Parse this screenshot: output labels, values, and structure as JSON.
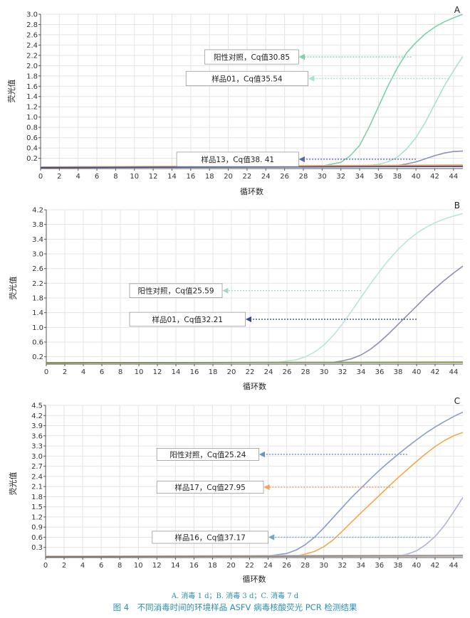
{
  "caption": {
    "subtitle": "A. 消毒 1 d；B. 消毒 3 d；C. 消毒 7 d",
    "title": "图 4　不同消毒时间的环境样品 ASFV 病毒核酸荧光 PCR 检测结果"
  },
  "chart_data": [
    {
      "panel": "A",
      "type": "line",
      "xlabel": "循环数",
      "ylabel": "荧光值",
      "xlim": [
        0,
        45
      ],
      "ylim": [
        0,
        3.0
      ],
      "xticks": [
        0,
        2,
        4,
        6,
        8,
        10,
        12,
        14,
        16,
        18,
        20,
        22,
        24,
        26,
        28,
        30,
        32,
        34,
        36,
        38,
        40,
        42,
        44
      ],
      "yticks": [
        0.2,
        0.4,
        0.6,
        0.8,
        1.0,
        1.2,
        1.4,
        1.6,
        1.8,
        2.0,
        2.2,
        2.4,
        2.6,
        2.8,
        3.0
      ],
      "ytick_labels": [
        "0.2",
        "0.4",
        "0.6",
        "0.8",
        "1.0",
        "1.2",
        "1.4",
        "1.6",
        "1.8",
        "2.0",
        "2.2",
        "2.4",
        "2.6",
        "2.8",
        "3.0"
      ],
      "grid": true,
      "series": [
        {
          "color": "#7ed1a8",
          "x": [
            0,
            30,
            32,
            33,
            34,
            35,
            36,
            37,
            38,
            39,
            40,
            41,
            42,
            43,
            44,
            45
          ],
          "y": [
            0.03,
            0.05,
            0.12,
            0.25,
            0.45,
            0.8,
            1.2,
            1.6,
            1.95,
            2.25,
            2.45,
            2.62,
            2.75,
            2.85,
            2.93,
            3.0
          ]
        },
        {
          "color": "#a8e3cc",
          "x": [
            0,
            34,
            36,
            37,
            38,
            39,
            40,
            41,
            42,
            43,
            44,
            45
          ],
          "y": [
            0.03,
            0.04,
            0.08,
            0.13,
            0.22,
            0.38,
            0.6,
            0.9,
            1.25,
            1.6,
            1.9,
            2.18
          ]
        },
        {
          "color": "#8a90c0",
          "x": [
            0,
            36,
            38,
            39,
            40,
            41,
            42,
            43,
            44,
            45
          ],
          "y": [
            0.03,
            0.04,
            0.06,
            0.09,
            0.13,
            0.19,
            0.25,
            0.3,
            0.33,
            0.34
          ]
        },
        {
          "color": "#d9534f",
          "x": [
            0,
            45
          ],
          "y": [
            0.02,
            0.05
          ]
        },
        {
          "color": "#f0a868",
          "x": [
            0,
            45
          ],
          "y": [
            0.03,
            0.07
          ]
        },
        {
          "color": "#3b4c8f",
          "x": [
            0,
            45
          ],
          "y": [
            0.02,
            0.04
          ]
        }
      ],
      "annotations": [
        {
          "text": "阳性对照，Cq值30.85",
          "color": "#7ed1a8",
          "box": {
            "x": 17.5,
            "y": 2.17,
            "w": 10,
            "h": 0.28
          },
          "arrow_from": [
            39.5,
            2.17
          ],
          "arrow_to": [
            27.5,
            2.17
          ]
        },
        {
          "text": "样品01，Cq值35.54",
          "color": "#a8e3cc",
          "box": {
            "x": 15.5,
            "y": 1.75,
            "w": 13,
            "h": 0.28
          },
          "arrow_from": [
            43.5,
            1.75
          ],
          "arrow_to": [
            28.5,
            1.75
          ]
        },
        {
          "text": "样品13，Cq值38. 41",
          "color": "#5a6aa8",
          "box": {
            "x": 14.5,
            "y": 0.18,
            "w": 13,
            "h": 0.28
          },
          "arrow_from": [
            40,
            0.18
          ],
          "arrow_to": [
            27.5,
            0.18
          ]
        }
      ]
    },
    {
      "panel": "B",
      "type": "line",
      "xlabel": "循环数",
      "ylabel": "荧光值",
      "xlim": [
        0,
        45
      ],
      "ylim": [
        0,
        4.2
      ],
      "xticks": [
        0,
        2,
        4,
        6,
        8,
        10,
        12,
        14,
        16,
        18,
        20,
        22,
        24,
        26,
        28,
        30,
        32,
        34,
        36,
        38,
        40,
        42,
        44
      ],
      "yticks": [
        0.2,
        0.6,
        1.0,
        1.4,
        1.8,
        2.2,
        2.6,
        3.0,
        3.4,
        3.8,
        4.2
      ],
      "ytick_labels": [
        "0.2",
        "0.6",
        "1.0",
        "1.4",
        "1.8",
        "2.2",
        "2.6",
        "3.0",
        "3.4",
        "3.8",
        "4.2"
      ],
      "grid": true,
      "series": [
        {
          "color": "#b8e8d4",
          "x": [
            0,
            25,
            27,
            28,
            29,
            30,
            31,
            32,
            33,
            34,
            35,
            36,
            37,
            38,
            39,
            40,
            41,
            42,
            43,
            44,
            45
          ],
          "y": [
            0.03,
            0.05,
            0.12,
            0.2,
            0.33,
            0.52,
            0.78,
            1.1,
            1.45,
            1.82,
            2.18,
            2.52,
            2.84,
            3.12,
            3.36,
            3.56,
            3.72,
            3.85,
            3.95,
            4.03,
            4.1
          ]
        },
        {
          "color": "#8e90b0",
          "x": [
            0,
            31,
            32,
            33,
            34,
            35,
            36,
            37,
            38,
            39,
            40,
            41,
            42,
            43,
            44,
            45
          ],
          "y": [
            0.03,
            0.05,
            0.09,
            0.15,
            0.25,
            0.4,
            0.6,
            0.83,
            1.08,
            1.33,
            1.58,
            1.83,
            2.06,
            2.28,
            2.48,
            2.67
          ]
        },
        {
          "color": "#f0c060",
          "x": [
            0,
            45
          ],
          "y": [
            0.03,
            0.06
          ]
        },
        {
          "color": "#6a8a50",
          "x": [
            0,
            45
          ],
          "y": [
            0.04,
            0.05
          ]
        }
      ],
      "annotations": [
        {
          "text": "阳性对照，Cq值25.59",
          "color": "#9fdcc4",
          "box": {
            "x": 9,
            "y": 2.0,
            "w": 10,
            "h": 0.38
          },
          "arrow_from": [
            34,
            2.0
          ],
          "arrow_to": [
            19,
            2.0
          ]
        },
        {
          "text": "样品01，Cq值32.21",
          "color": "#3a4a90",
          "box": {
            "x": 9,
            "y": 1.22,
            "w": 12.5,
            "h": 0.38
          },
          "arrow_from": [
            40,
            1.22
          ],
          "arrow_to": [
            21.5,
            1.22
          ]
        }
      ]
    },
    {
      "panel": "C",
      "type": "line",
      "xlabel": "循环数",
      "ylabel": "荧光值",
      "xlim": [
        0,
        45
      ],
      "ylim": [
        0,
        4.5
      ],
      "xticks": [
        0,
        2,
        4,
        6,
        8,
        10,
        12,
        14,
        16,
        18,
        20,
        22,
        24,
        26,
        28,
        30,
        32,
        34,
        36,
        38,
        40,
        42,
        44
      ],
      "yticks": [
        0.3,
        0.6,
        0.9,
        1.2,
        1.5,
        1.8,
        2.1,
        2.4,
        2.7,
        3.0,
        3.3,
        3.6,
        3.9,
        4.2,
        4.5
      ],
      "ytick_labels": [
        "0.3",
        "0.6",
        "0.9",
        "1.2",
        "1.5",
        "1.8",
        "2.1",
        "2.4",
        "2.7",
        "3.0",
        "3.3",
        "3.6",
        "3.9",
        "4.2",
        "4.5"
      ],
      "grid": true,
      "series": [
        {
          "color": "#8c9bc8",
          "x": [
            0,
            24,
            26,
            27,
            28,
            29,
            30,
            31,
            32,
            33,
            34,
            35,
            36,
            37,
            38,
            39,
            40,
            41,
            42,
            43,
            44,
            45
          ],
          "y": [
            0.03,
            0.05,
            0.12,
            0.22,
            0.38,
            0.6,
            0.88,
            1.18,
            1.48,
            1.78,
            2.05,
            2.32,
            2.58,
            2.82,
            3.05,
            3.27,
            3.48,
            3.68,
            3.86,
            4.02,
            4.17,
            4.3
          ]
        },
        {
          "color": "#f4a84a",
          "x": [
            0,
            27,
            28,
            29,
            30,
            31,
            32,
            33,
            34,
            35,
            36,
            37,
            38,
            39,
            40,
            41,
            42,
            43,
            44,
            45
          ],
          "y": [
            0.03,
            0.05,
            0.1,
            0.18,
            0.32,
            0.52,
            0.78,
            1.05,
            1.32,
            1.58,
            1.84,
            2.1,
            2.36,
            2.6,
            2.84,
            3.07,
            3.28,
            3.46,
            3.6,
            3.7
          ]
        },
        {
          "color": "#b0b4d8",
          "x": [
            0,
            38,
            39,
            40,
            41,
            42,
            43,
            44,
            45
          ],
          "y": [
            0.03,
            0.05,
            0.1,
            0.2,
            0.38,
            0.62,
            0.95,
            1.35,
            1.78
          ]
        },
        {
          "color": "#c8d0dc",
          "x": [
            0,
            45
          ],
          "y": [
            0.04,
            0.08
          ]
        },
        {
          "color": "#8a7a6a",
          "x": [
            0,
            45
          ],
          "y": [
            0.03,
            0.05
          ]
        }
      ],
      "annotations": [
        {
          "text": "阳性对照，Cq值25.24",
          "color": "#6a90d0",
          "box": {
            "x": 12,
            "y": 3.05,
            "w": 11,
            "h": 0.36
          },
          "arrow_from": [
            39,
            3.05
          ],
          "arrow_to": [
            23,
            3.05
          ]
        },
        {
          "text": "样品17，Cq值27.95",
          "color": "#f4a060",
          "box": {
            "x": 12,
            "y": 2.08,
            "w": 11.5,
            "h": 0.36
          },
          "arrow_from": [
            37.5,
            2.08
          ],
          "arrow_to": [
            23.5,
            2.08
          ]
        },
        {
          "text": "样品16，Cq值37.17",
          "color": "#6aa8d8",
          "box": {
            "x": 11.5,
            "y": 0.6,
            "w": 12.5,
            "h": 0.36
          },
          "arrow_from": [
            41.5,
            0.6
          ],
          "arrow_to": [
            24,
            0.6
          ]
        }
      ]
    }
  ]
}
